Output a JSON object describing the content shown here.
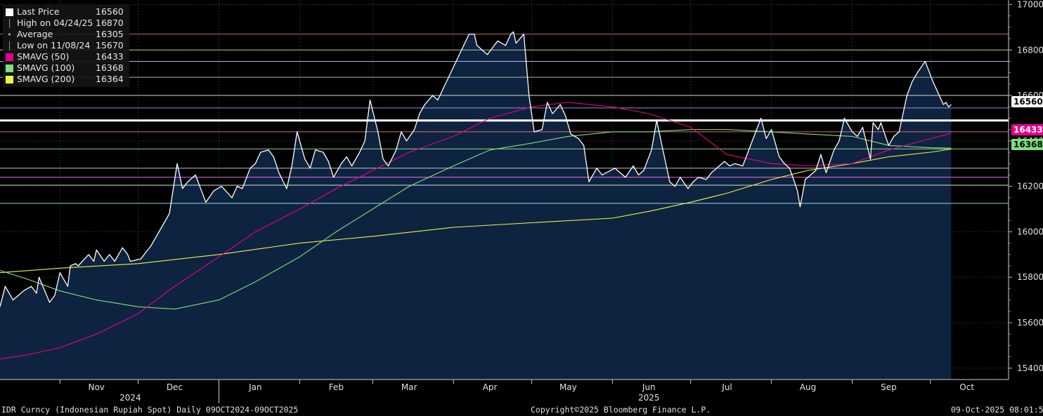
{
  "legend": [
    {
      "label": "Last Price",
      "value": "16560",
      "color": "#ffffff",
      "icon": "white-square"
    },
    {
      "label": "High on 04/24/25",
      "value": "16870",
      "color": "#9a9a9a",
      "icon": "high-marker-icon"
    },
    {
      "label": "Average",
      "value": "16305",
      "color": "#9a9a9a",
      "icon": "average-marker-icon"
    },
    {
      "label": "Low on 11/08/24",
      "value": "15670",
      "color": "#9a9a9a",
      "icon": "low-marker-icon"
    },
    {
      "label": "SMAVG (50)",
      "value": "16433",
      "color": "#e6008a",
      "icon": "magenta-square"
    },
    {
      "label": "SMAVG (100)",
      "value": "16368",
      "color": "#7ee07e",
      "icon": "green-square"
    },
    {
      "label": "SMAVG (200)",
      "value": "16364",
      "color": "#f0f04a",
      "icon": "yellow-square"
    }
  ],
  "footer": {
    "left": "IDR Curncy (Indonesian Rupiah Spot) Daily 09OCT2024-09OCT2025",
    "center": "Copyright©2025 Bloomberg Finance L.P.",
    "right": "09-Oct-2025 08:01:59"
  },
  "tags": {
    "last": "16560",
    "sma50": "16433",
    "sma100": "16368"
  },
  "chart_data": {
    "type": "area",
    "title": "",
    "xlabel": "",
    "ylabel": "",
    "ylim": [
      15350,
      17020
    ],
    "y_ticks": [
      "15400",
      "15600",
      "15800",
      "16000",
      "16200",
      "16400",
      "16600",
      "16800",
      "17000"
    ],
    "x_ticks": [
      "Nov",
      "Dec",
      "Jan",
      "Feb",
      "Mar",
      "Apr",
      "May",
      "Jun",
      "Jul",
      "Aug",
      "Sep",
      "Oct"
    ],
    "year_labels": [
      "2024",
      "2025"
    ],
    "x_range": [
      "2024-10-09",
      "2025-10-31"
    ],
    "colors": {
      "price_fill": "#0e2340",
      "price_line": "#ffffff",
      "sma50": "#e6008a",
      "sma100": "#7ee07e",
      "sma200": "#f0f04a"
    },
    "horizontal_lines": [
      {
        "value": 16870,
        "color": "#d88080"
      },
      {
        "value": 16800,
        "color": "#e8e0b0"
      },
      {
        "value": 16750,
        "color": "#d0d0ff"
      },
      {
        "value": 16680,
        "color": "#b0e0b0"
      },
      {
        "value": 16600,
        "color": "#ffffe0"
      },
      {
        "value": 16545,
        "color": "#a8a8ff"
      },
      {
        "value": 16490,
        "color": "#ffffff",
        "width": 3
      },
      {
        "value": 16440,
        "color": "#ff8080"
      },
      {
        "value": 16365,
        "color": "#a0ffa0"
      },
      {
        "value": 16280,
        "color": "#e0e0e0"
      },
      {
        "value": 16240,
        "color": "#ff80ff"
      },
      {
        "value": 16205,
        "color": "#ffffff"
      },
      {
        "value": 16125,
        "color": "#a0ffff"
      }
    ],
    "series": [
      {
        "name": "Last Price",
        "points": [
          [
            "2024-10-09",
            15670
          ],
          [
            "2024-10-11",
            15760
          ],
          [
            "2024-10-14",
            15700
          ],
          [
            "2024-10-16",
            15720
          ],
          [
            "2024-10-18",
            15740
          ],
          [
            "2024-10-21",
            15760
          ],
          [
            "2024-10-23",
            15730
          ],
          [
            "2024-10-24",
            15800
          ],
          [
            "2024-10-28",
            15690
          ],
          [
            "2024-10-30",
            15720
          ],
          [
            "2024-11-01",
            15820
          ],
          [
            "2024-11-04",
            15760
          ],
          [
            "2024-11-05",
            15850
          ],
          [
            "2024-11-07",
            15860
          ],
          [
            "2024-11-08",
            15850
          ],
          [
            "2024-11-12",
            15900
          ],
          [
            "2024-11-14",
            15870
          ],
          [
            "2024-11-15",
            15920
          ],
          [
            "2024-11-18",
            15870
          ],
          [
            "2024-11-20",
            15900
          ],
          [
            "2024-11-22",
            15870
          ],
          [
            "2024-11-25",
            15930
          ],
          [
            "2024-11-27",
            15900
          ],
          [
            "2024-11-28",
            15870
          ],
          [
            "2024-12-02",
            15880
          ],
          [
            "2024-12-04",
            15910
          ],
          [
            "2024-12-06",
            15940
          ],
          [
            "2024-12-09",
            16000
          ],
          [
            "2024-12-11",
            16040
          ],
          [
            "2024-12-13",
            16080
          ],
          [
            "2024-12-16",
            16300
          ],
          [
            "2024-12-18",
            16190
          ],
          [
            "2024-12-20",
            16220
          ],
          [
            "2024-12-23",
            16250
          ],
          [
            "2024-12-27",
            16130
          ],
          [
            "2024-12-30",
            16180
          ],
          [
            "2025-01-02",
            16200
          ],
          [
            "2025-01-06",
            16150
          ],
          [
            "2025-01-08",
            16200
          ],
          [
            "2025-01-10",
            16190
          ],
          [
            "2025-01-13",
            16280
          ],
          [
            "2025-01-15",
            16300
          ],
          [
            "2025-01-17",
            16350
          ],
          [
            "2025-01-20",
            16360
          ],
          [
            "2025-01-22",
            16330
          ],
          [
            "2025-01-24",
            16260
          ],
          [
            "2025-01-27",
            16190
          ],
          [
            "2025-01-29",
            16290
          ],
          [
            "2025-01-31",
            16440
          ],
          [
            "2025-02-03",
            16320
          ],
          [
            "2025-02-05",
            16280
          ],
          [
            "2025-02-07",
            16360
          ],
          [
            "2025-02-10",
            16350
          ],
          [
            "2025-02-12",
            16310
          ],
          [
            "2025-02-14",
            16240
          ],
          [
            "2025-02-17",
            16300
          ],
          [
            "2025-02-19",
            16330
          ],
          [
            "2025-02-21",
            16290
          ],
          [
            "2025-02-24",
            16350
          ],
          [
            "2025-02-26",
            16400
          ],
          [
            "2025-02-28",
            16580
          ],
          [
            "2025-03-03",
            16440
          ],
          [
            "2025-03-05",
            16320
          ],
          [
            "2025-03-07",
            16290
          ],
          [
            "2025-03-10",
            16360
          ],
          [
            "2025-03-12",
            16440
          ],
          [
            "2025-03-14",
            16400
          ],
          [
            "2025-03-17",
            16450
          ],
          [
            "2025-03-19",
            16520
          ],
          [
            "2025-03-21",
            16560
          ],
          [
            "2025-03-24",
            16600
          ],
          [
            "2025-03-26",
            16580
          ],
          [
            "2025-04-07",
            16870
          ],
          [
            "2025-04-09",
            16870
          ],
          [
            "2025-04-10",
            16820
          ],
          [
            "2025-04-14",
            16780
          ],
          [
            "2025-04-16",
            16810
          ],
          [
            "2025-04-18",
            16840
          ],
          [
            "2025-04-21",
            16820
          ],
          [
            "2025-04-23",
            16870
          ],
          [
            "2025-04-24",
            16880
          ],
          [
            "2025-04-25",
            16830
          ],
          [
            "2025-04-28",
            16870
          ],
          [
            "2025-04-30",
            16600
          ],
          [
            "2025-05-02",
            16440
          ],
          [
            "2025-05-05",
            16450
          ],
          [
            "2025-05-07",
            16570
          ],
          [
            "2025-05-09",
            16520
          ],
          [
            "2025-05-12",
            16560
          ],
          [
            "2025-05-14",
            16510
          ],
          [
            "2025-05-16",
            16430
          ],
          [
            "2025-05-19",
            16410
          ],
          [
            "2025-05-21",
            16380
          ],
          [
            "2025-05-23",
            16220
          ],
          [
            "2025-05-26",
            16280
          ],
          [
            "2025-05-28",
            16250
          ],
          [
            "2025-06-02",
            16280
          ],
          [
            "2025-06-04",
            16260
          ],
          [
            "2025-06-06",
            16240
          ],
          [
            "2025-06-09",
            16290
          ],
          [
            "2025-06-11",
            16250
          ],
          [
            "2025-06-13",
            16270
          ],
          [
            "2025-06-16",
            16360
          ],
          [
            "2025-06-18",
            16490
          ],
          [
            "2025-06-20",
            16380
          ],
          [
            "2025-06-23",
            16220
          ],
          [
            "2025-06-25",
            16200
          ],
          [
            "2025-06-27",
            16240
          ],
          [
            "2025-06-30",
            16190
          ],
          [
            "2025-07-02",
            16220
          ],
          [
            "2025-07-04",
            16240
          ],
          [
            "2025-07-07",
            16230
          ],
          [
            "2025-07-09",
            16260
          ],
          [
            "2025-07-11",
            16280
          ],
          [
            "2025-07-14",
            16310
          ],
          [
            "2025-07-16",
            16290
          ],
          [
            "2025-07-18",
            16300
          ],
          [
            "2025-07-21",
            16290
          ],
          [
            "2025-07-23",
            16350
          ],
          [
            "2025-07-25",
            16410
          ],
          [
            "2025-07-28",
            16500
          ],
          [
            "2025-07-30",
            16410
          ],
          [
            "2025-08-01",
            16450
          ],
          [
            "2025-08-04",
            16330
          ],
          [
            "2025-08-06",
            16300
          ],
          [
            "2025-08-08",
            16280
          ],
          [
            "2025-08-11",
            16180
          ],
          [
            "2025-08-12",
            16110
          ],
          [
            "2025-08-14",
            16230
          ],
          [
            "2025-08-18",
            16270
          ],
          [
            "2025-08-20",
            16340
          ],
          [
            "2025-08-22",
            16260
          ],
          [
            "2025-08-25",
            16360
          ],
          [
            "2025-08-27",
            16400
          ],
          [
            "2025-08-29",
            16500
          ],
          [
            "2025-09-01",
            16440
          ],
          [
            "2025-09-03",
            16420
          ],
          [
            "2025-09-05",
            16460
          ],
          [
            "2025-09-08",
            16320
          ],
          [
            "2025-09-09",
            16480
          ],
          [
            "2025-09-11",
            16450
          ],
          [
            "2025-09-12",
            16480
          ],
          [
            "2025-09-15",
            16380
          ],
          [
            "2025-09-17",
            16420
          ],
          [
            "2025-09-19",
            16440
          ],
          [
            "2025-09-22",
            16600
          ],
          [
            "2025-09-24",
            16660
          ],
          [
            "2025-09-26",
            16700
          ],
          [
            "2025-09-29",
            16750
          ],
          [
            "2025-09-30",
            16720
          ],
          [
            "2025-10-02",
            16660
          ],
          [
            "2025-10-06",
            16560
          ],
          [
            "2025-10-07",
            16570
          ],
          [
            "2025-10-08",
            16550
          ],
          [
            "2025-10-09",
            16560
          ]
        ]
      },
      {
        "name": "SMAVG (50)",
        "points": [
          [
            "2024-10-09",
            15440
          ],
          [
            "2024-10-20",
            15460
          ],
          [
            "2024-11-01",
            15490
          ],
          [
            "2024-11-15",
            15550
          ],
          [
            "2024-12-01",
            15640
          ],
          [
            "2024-12-15",
            15760
          ],
          [
            "2025-01-01",
            15890
          ],
          [
            "2025-01-15",
            16000
          ],
          [
            "2025-02-01",
            16100
          ],
          [
            "2025-02-15",
            16190
          ],
          [
            "2025-03-01",
            16270
          ],
          [
            "2025-03-15",
            16350
          ],
          [
            "2025-04-01",
            16420
          ],
          [
            "2025-04-15",
            16500
          ],
          [
            "2025-05-01",
            16550
          ],
          [
            "2025-05-15",
            16570
          ],
          [
            "2025-06-01",
            16550
          ],
          [
            "2025-06-15",
            16520
          ],
          [
            "2025-07-01",
            16460
          ],
          [
            "2025-07-15",
            16340
          ],
          [
            "2025-08-01",
            16300
          ],
          [
            "2025-08-15",
            16290
          ],
          [
            "2025-09-01",
            16300
          ],
          [
            "2025-09-15",
            16360
          ],
          [
            "2025-10-01",
            16410
          ],
          [
            "2025-10-09",
            16433
          ]
        ]
      },
      {
        "name": "SMAVG (100)",
        "points": [
          [
            "2024-10-09",
            15830
          ],
          [
            "2024-10-20",
            15790
          ],
          [
            "2024-11-01",
            15740
          ],
          [
            "2024-11-15",
            15700
          ],
          [
            "2024-12-01",
            15670
          ],
          [
            "2024-12-15",
            15660
          ],
          [
            "2025-01-01",
            15700
          ],
          [
            "2025-01-15",
            15780
          ],
          [
            "2025-02-01",
            15890
          ],
          [
            "2025-02-15",
            16000
          ],
          [
            "2025-03-01",
            16100
          ],
          [
            "2025-03-15",
            16200
          ],
          [
            "2025-04-01",
            16290
          ],
          [
            "2025-04-15",
            16360
          ],
          [
            "2025-05-01",
            16390
          ],
          [
            "2025-05-15",
            16420
          ],
          [
            "2025-06-01",
            16440
          ],
          [
            "2025-06-15",
            16440
          ],
          [
            "2025-07-01",
            16450
          ],
          [
            "2025-07-15",
            16450
          ],
          [
            "2025-08-01",
            16440
          ],
          [
            "2025-08-15",
            16430
          ],
          [
            "2025-09-01",
            16420
          ],
          [
            "2025-09-15",
            16380
          ],
          [
            "2025-10-01",
            16370
          ],
          [
            "2025-10-09",
            16368
          ]
        ]
      },
      {
        "name": "SMAVG (200)",
        "points": [
          [
            "2024-10-09",
            15820
          ],
          [
            "2024-11-01",
            15840
          ],
          [
            "2024-12-01",
            15860
          ],
          [
            "2025-01-01",
            15900
          ],
          [
            "2025-02-01",
            15950
          ],
          [
            "2025-03-01",
            15980
          ],
          [
            "2025-04-01",
            16020
          ],
          [
            "2025-05-01",
            16040
          ],
          [
            "2025-06-01",
            16060
          ],
          [
            "2025-06-15",
            16090
          ],
          [
            "2025-07-01",
            16130
          ],
          [
            "2025-07-15",
            16170
          ],
          [
            "2025-08-01",
            16230
          ],
          [
            "2025-08-15",
            16270
          ],
          [
            "2025-09-01",
            16300
          ],
          [
            "2025-09-15",
            16330
          ],
          [
            "2025-10-01",
            16350
          ],
          [
            "2025-10-09",
            16364
          ]
        ]
      }
    ]
  }
}
